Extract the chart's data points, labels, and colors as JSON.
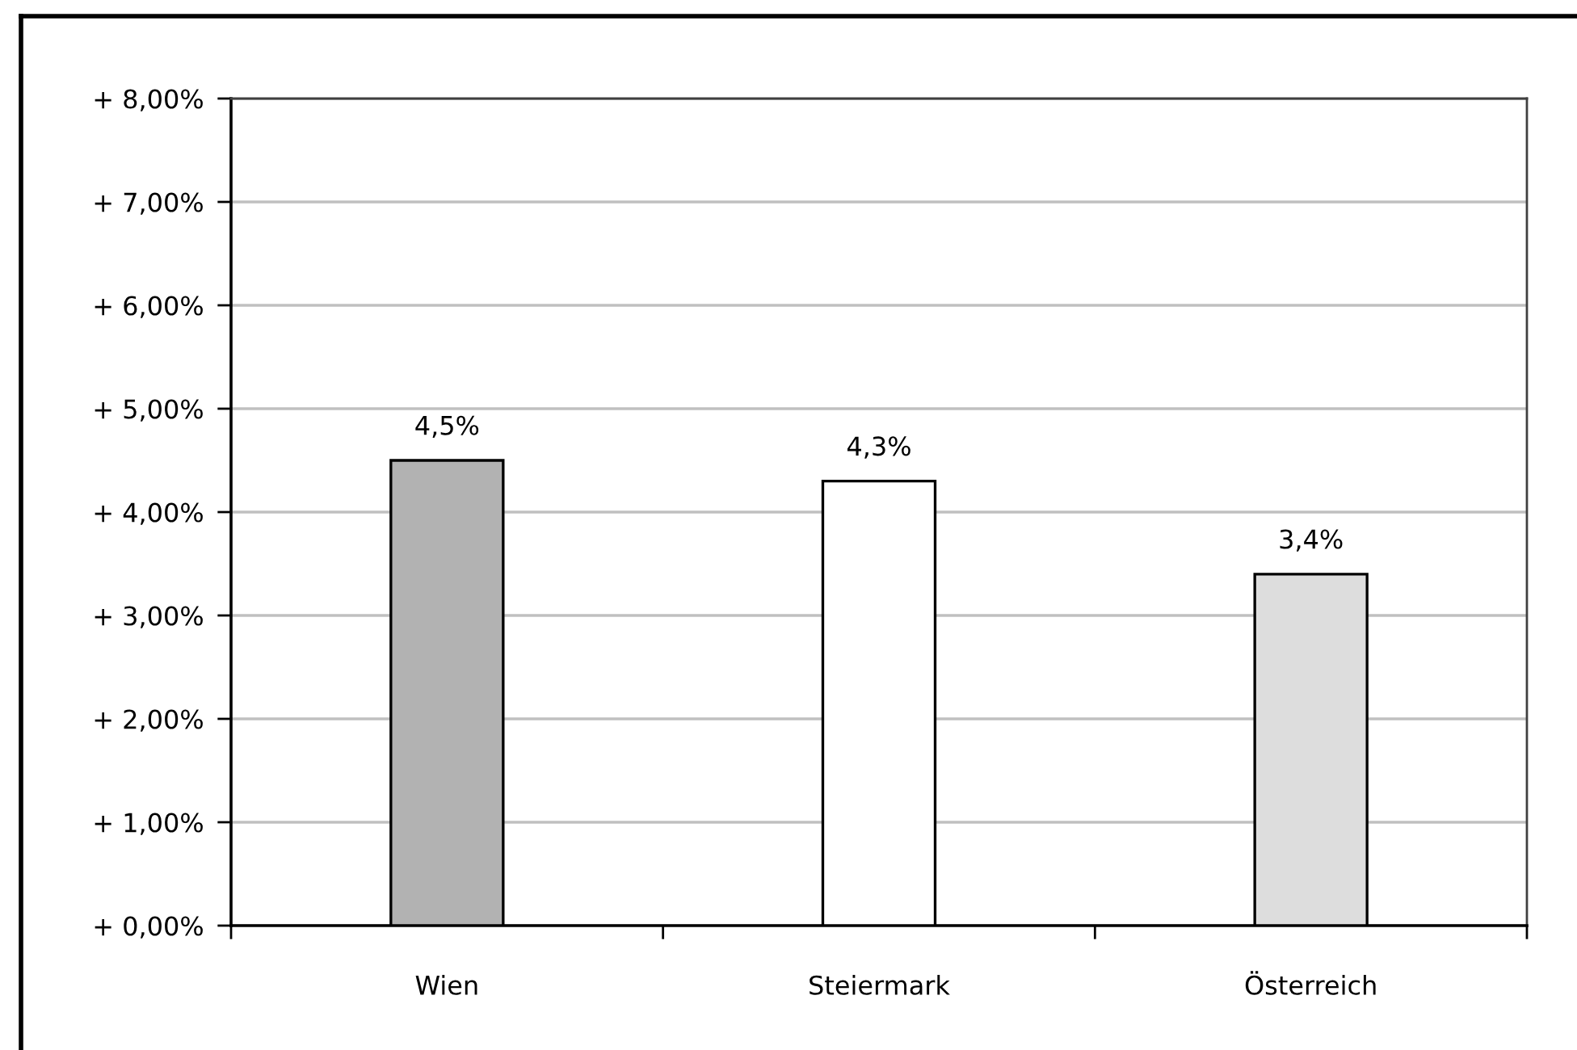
{
  "chart_data": {
    "type": "bar",
    "categories": [
      "Wien",
      "Steiermark",
      "Österreich"
    ],
    "values": [
      4.5,
      4.3,
      3.4
    ],
    "colors": [
      "#b2b2b2",
      "#ffffff",
      "#dddddd"
    ],
    "value_labels": [
      "4,5%",
      "4,3%",
      "3,4%"
    ],
    "ylim": [
      0,
      8
    ],
    "yticks": [
      {
        "value": 0,
        "label": "+ 0,00%"
      },
      {
        "value": 1,
        "label": "+ 1,00%"
      },
      {
        "value": 2,
        "label": "+ 2,00%"
      },
      {
        "value": 3,
        "label": "+ 3,00%"
      },
      {
        "value": 4,
        "label": "+ 4,00%"
      },
      {
        "value": 5,
        "label": "+ 5,00%"
      },
      {
        "value": 6,
        "label": "+ 6,00%"
      },
      {
        "value": 7,
        "label": "+ 7,00%"
      },
      {
        "value": 8,
        "label": "+ 8,00%"
      }
    ],
    "grid": "y"
  }
}
